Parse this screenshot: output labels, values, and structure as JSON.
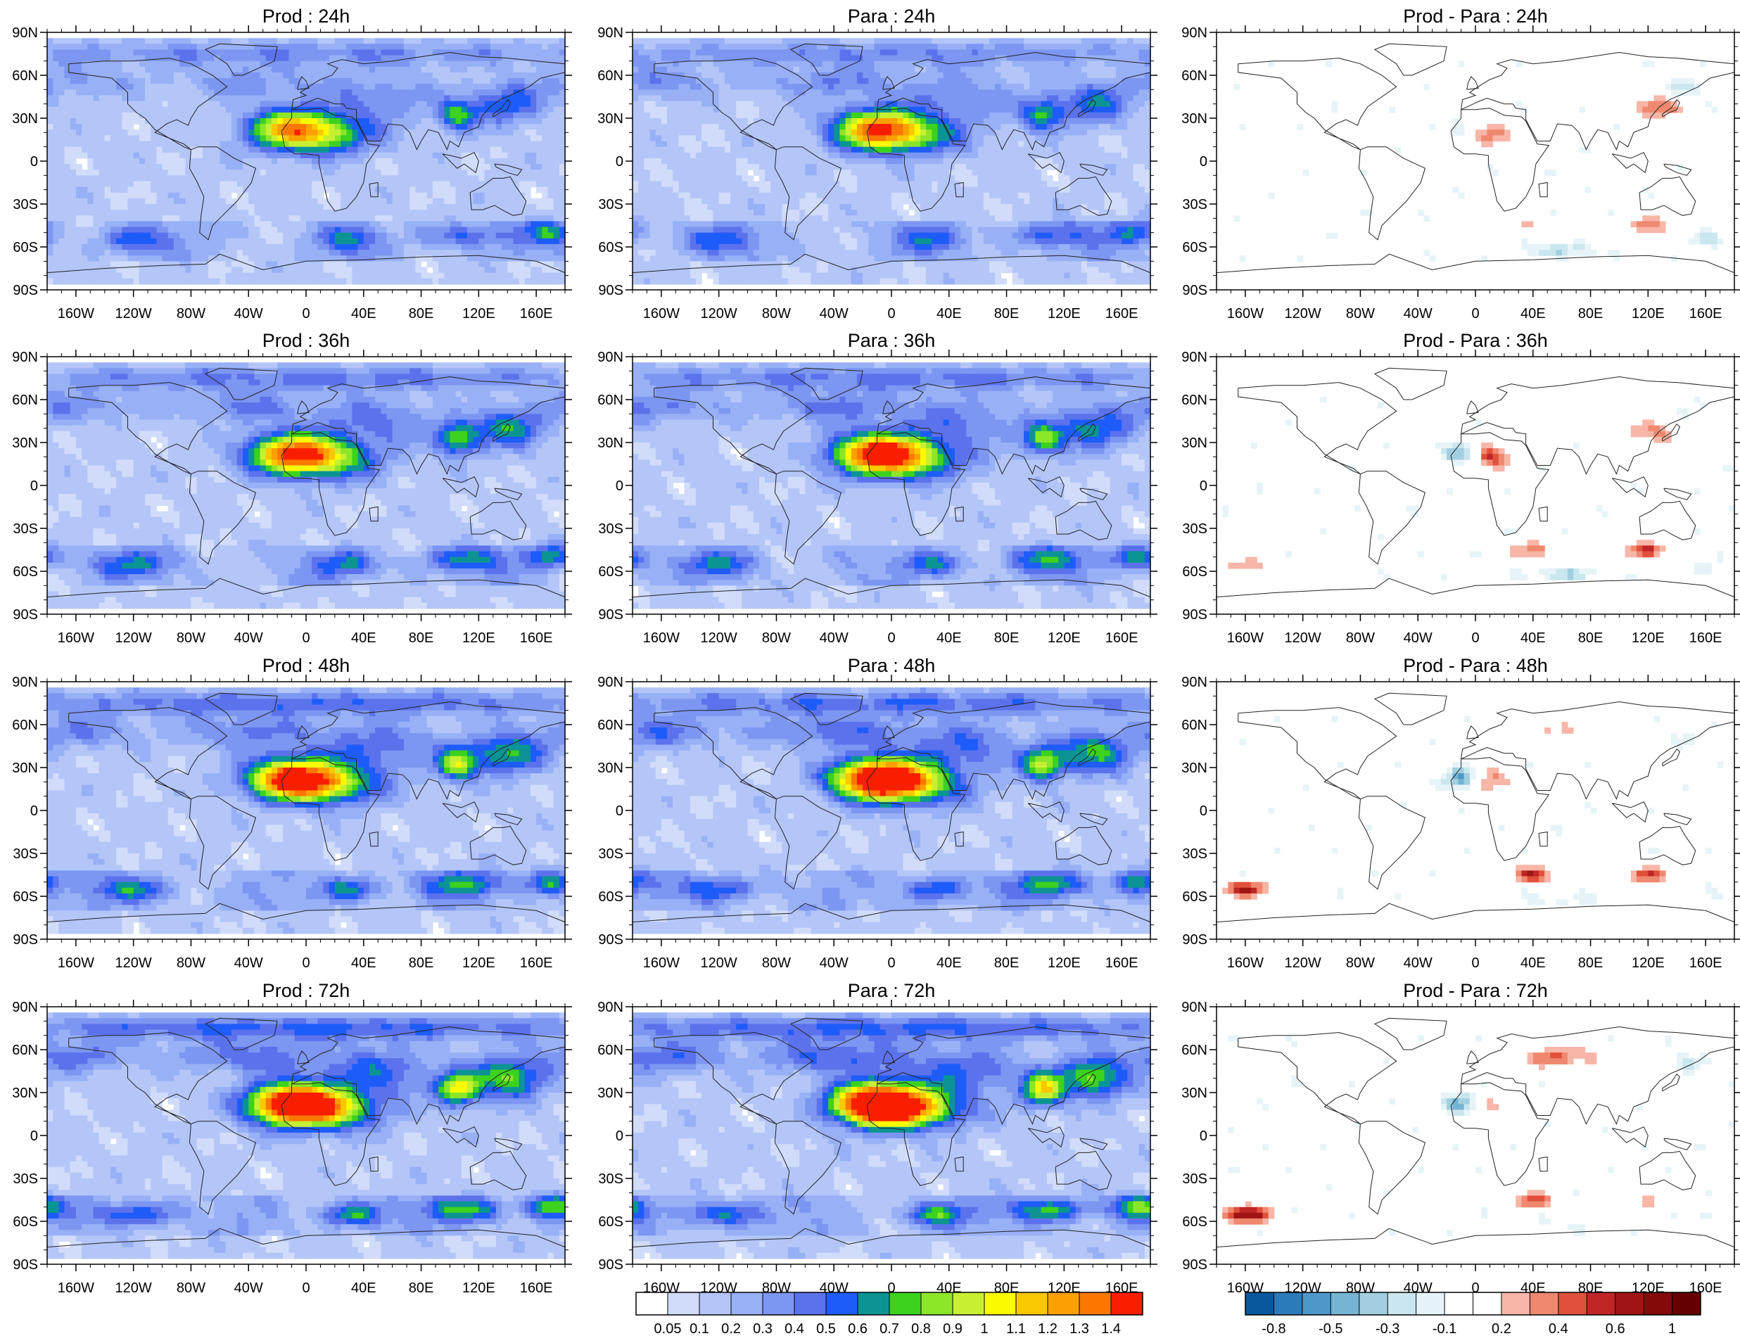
{
  "chart_data": {
    "type": "heatmap",
    "description_layout": "4 rows (forecast hours) x 3 columns (Prod, Para, Prod - Para) of global maps",
    "forecast_hours": [
      "24h",
      "36h",
      "48h",
      "72h"
    ],
    "columns": [
      {
        "name": "Prod",
        "scale": "abs"
      },
      {
        "name": "Para",
        "scale": "abs"
      },
      {
        "name": "Prod - Para",
        "scale": "diff"
      }
    ],
    "panels": [
      {
        "title": "Prod : 24h"
      },
      {
        "title": "Para : 24h"
      },
      {
        "title": "Prod - Para : 24h"
      },
      {
        "title": "Prod : 36h"
      },
      {
        "title": "Para : 36h"
      },
      {
        "title": "Prod - Para : 36h"
      },
      {
        "title": "Prod : 48h"
      },
      {
        "title": "Para : 48h"
      },
      {
        "title": "Prod - Para : 48h"
      },
      {
        "title": "Prod : 72h"
      },
      {
        "title": "Para : 72h"
      },
      {
        "title": "Prod - Para : 72h"
      }
    ],
    "x_axis": {
      "range": [
        -180,
        180
      ],
      "tick_values": [
        -160,
        -120,
        -80,
        -40,
        0,
        40,
        80,
        120,
        160
      ],
      "tick_labels": [
        "160W",
        "120W",
        "80W",
        "40W",
        "0",
        "40E",
        "80E",
        "120E",
        "160E"
      ]
    },
    "y_axis": {
      "range": [
        -90,
        90
      ],
      "tick_values": [
        90,
        60,
        30,
        0,
        -30,
        -60,
        -90
      ],
      "tick_labels": [
        "90N",
        "60N",
        "30N",
        "0",
        "30S",
        "60S",
        "90S"
      ]
    },
    "abs_colorbar": {
      "levels": [
        "0.05",
        "0.1",
        "0.2",
        "0.3",
        "0.4",
        "0.5",
        "0.6",
        "0.7",
        "0.8",
        "0.9",
        "1",
        "1.1",
        "1.2",
        "1.3",
        "1.4"
      ],
      "colors": [
        "#ffffff",
        "#d0dcfa",
        "#b4c6f8",
        "#98b0f6",
        "#7c96f2",
        "#5c72ec",
        "#1e5cfa",
        "#0c9494",
        "#3cd21e",
        "#8ce628",
        "#c8f032",
        "#fafa00",
        "#fac800",
        "#faa000",
        "#fa7800",
        "#fa1e00"
      ]
    },
    "diff_colorbar": {
      "levels": [
        "-0.8",
        "",
        "-0.5",
        "",
        "-0.3",
        "",
        "-0.1",
        "",
        "0.2",
        "",
        "0.4",
        "",
        "0.6",
        "",
        "1"
      ],
      "colors": [
        "#08589e",
        "#2b7bba",
        "#4d98c8",
        "#76b4d4",
        "#a2cfe0",
        "#cae6ef",
        "#e6f4f8",
        "#ffffff",
        "#ffffff",
        "#f7b6a8",
        "#f0886f",
        "#e0503a",
        "#c02626",
        "#a01414",
        "#820a0a",
        "#640000"
      ]
    },
    "features": {
      "abs": [
        {
          "lon": -10,
          "lat": 22,
          "amp": 1.0,
          "sx": 22,
          "sy": 10
        },
        {
          "lon": 20,
          "lat": 18,
          "amp": 0.45,
          "sx": 25,
          "sy": 10
        },
        {
          "lon": 105,
          "lat": 32,
          "amp": 0.55,
          "sx": 10,
          "sy": 8
        },
        {
          "lon": 140,
          "lat": 40,
          "amp": 0.45,
          "sx": 18,
          "sy": 10
        },
        {
          "lon": 50,
          "lat": 45,
          "amp": 0.25,
          "sx": 30,
          "sy": 12
        },
        {
          "lon": -40,
          "lat": 55,
          "amp": 0.22,
          "sx": 35,
          "sy": 8
        },
        {
          "lon": -120,
          "lat": -55,
          "amp": 0.3,
          "sx": 20,
          "sy": 6
        },
        {
          "lon": 30,
          "lat": -55,
          "amp": 0.35,
          "sx": 15,
          "sy": 6
        },
        {
          "lon": 110,
          "lat": -52,
          "amp": 0.35,
          "sx": 20,
          "sy": 6
        },
        {
          "lon": 170,
          "lat": -50,
          "amp": 0.4,
          "sx": 12,
          "sy": 6
        },
        {
          "lon": -160,
          "lat": 55,
          "amp": 0.2,
          "sx": 30,
          "sy": 8
        },
        {
          "lon": 0,
          "lat": 75,
          "amp": 0.25,
          "sx": 180,
          "sy": 6
        }
      ],
      "diff": [
        {
          "lon": -10,
          "lat": 22,
          "amp": -0.45,
          "sx": 8,
          "sy": 5
        },
        {
          "lon": 10,
          "lat": 20,
          "amp": 0.45,
          "sx": 10,
          "sy": 6
        },
        {
          "lon": 125,
          "lat": 38,
          "amp": 0.45,
          "sx": 12,
          "sy": 6
        },
        {
          "lon": 145,
          "lat": 50,
          "amp": -0.35,
          "sx": 8,
          "sy": 5
        },
        {
          "lon": 60,
          "lat": 55,
          "amp": 0.3,
          "sx": 20,
          "sy": 5
        },
        {
          "lon": -160,
          "lat": -55,
          "amp": 0.5,
          "sx": 12,
          "sy": 4
        },
        {
          "lon": 40,
          "lat": -45,
          "amp": 0.4,
          "sx": 10,
          "sy": 4
        },
        {
          "lon": 120,
          "lat": -45,
          "amp": 0.45,
          "sx": 10,
          "sy": 4
        },
        {
          "lon": 60,
          "lat": -62,
          "amp": -0.3,
          "sx": 20,
          "sy": 3
        },
        {
          "lon": 160,
          "lat": -55,
          "amp": -0.3,
          "sx": 8,
          "sy": 4
        }
      ]
    }
  }
}
